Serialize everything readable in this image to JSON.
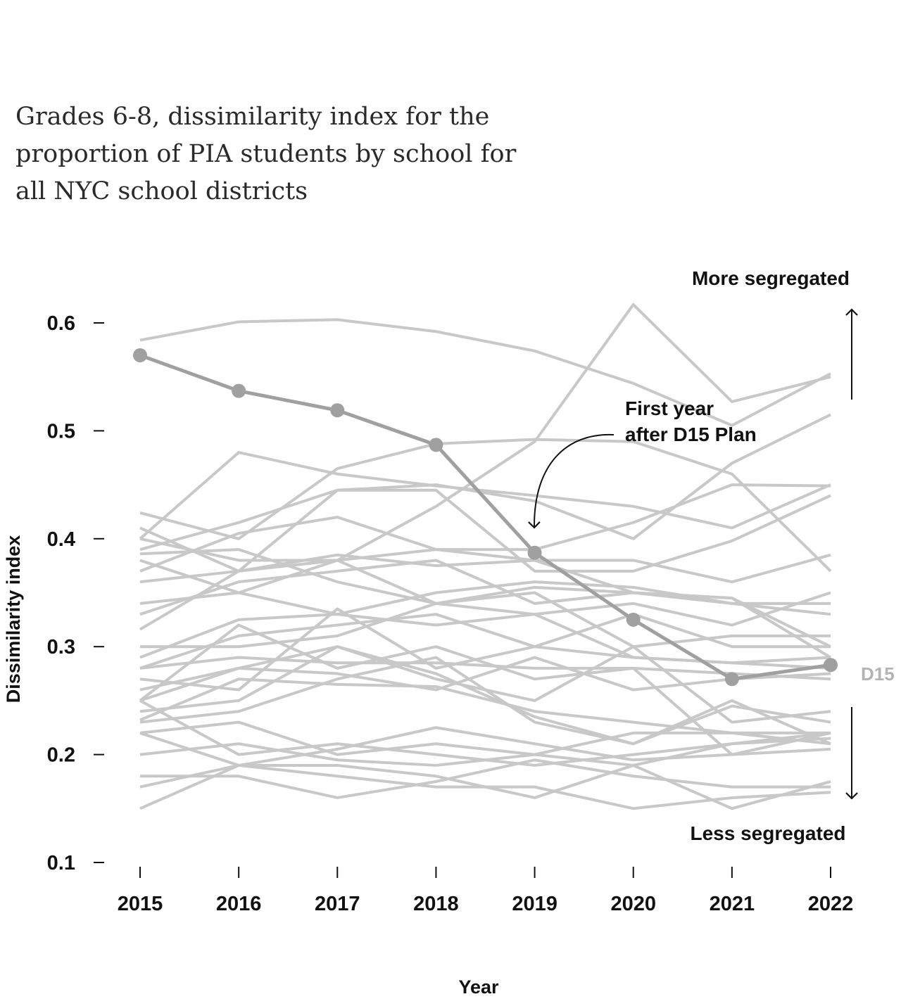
{
  "title_lines": [
    "Grades 6-8, dissimilarity index for the",
    "proportion of PIA students by school for",
    "all NYC school districts"
  ],
  "annotations": {
    "more": "More segregated",
    "less": "Less segregated",
    "note_line1": "First year",
    "note_line2": "after D15 Plan",
    "highlight_label": "D15"
  },
  "colors": {
    "background_lines": "#c8c8c8",
    "highlight": "#a0a0a0",
    "text": "#111111",
    "title": "#2a2a2a"
  },
  "chart_data": {
    "type": "line",
    "title": "Grades 6-8, dissimilarity index for the proportion of PIA students by school for all NYC school districts",
    "xlabel": "Year",
    "ylabel": "Dissimilarity index",
    "x": [
      "2015",
      "2016",
      "2017",
      "2018",
      "2019",
      "2020",
      "2021",
      "2022"
    ],
    "ylim": [
      0.1,
      0.6
    ],
    "yticks": [
      "0.1",
      "0.2",
      "0.3",
      "0.4",
      "0.5",
      "0.6"
    ],
    "grid": false,
    "highlight": {
      "name": "D15",
      "values": [
        0.57,
        0.537,
        0.519,
        0.487,
        0.387,
        0.325,
        0.27,
        0.283
      ],
      "markers": true
    },
    "series": [
      {
        "values": [
          0.584,
          0.601,
          0.603,
          0.592,
          0.574,
          0.544,
          0.505,
          0.553
        ]
      },
      {
        "values": [
          0.38,
          0.35,
          0.38,
          0.43,
          0.49,
          0.617,
          0.527,
          0.55
        ]
      },
      {
        "values": [
          0.4,
          0.48,
          0.46,
          0.449,
          0.44,
          0.43,
          0.41,
          0.45
        ]
      },
      {
        "values": [
          0.424,
          0.4,
          0.465,
          0.488,
          0.492,
          0.49,
          0.46,
          0.37
        ]
      },
      {
        "values": [
          0.39,
          0.415,
          0.445,
          0.45,
          0.435,
          0.4,
          0.47,
          0.515
        ]
      },
      {
        "values": [
          0.37,
          0.405,
          0.42,
          0.39,
          0.39,
          0.415,
          0.45,
          0.449
        ]
      },
      {
        "values": [
          0.36,
          0.37,
          0.445,
          0.445,
          0.37,
          0.37,
          0.398,
          0.44
        ]
      },
      {
        "values": [
          0.4,
          0.38,
          0.38,
          0.39,
          0.38,
          0.35,
          0.34,
          0.33
        ]
      },
      {
        "values": [
          0.41,
          0.37,
          0.385,
          0.375,
          0.38,
          0.38,
          0.36,
          0.385
        ]
      },
      {
        "values": [
          0.386,
          0.39,
          0.36,
          0.34,
          0.355,
          0.35,
          0.345,
          0.3
        ]
      },
      {
        "values": [
          0.34,
          0.35,
          0.33,
          0.35,
          0.36,
          0.355,
          0.34,
          0.34
        ]
      },
      {
        "values": [
          0.33,
          0.36,
          0.37,
          0.38,
          0.34,
          0.35,
          0.345,
          0.29
        ]
      },
      {
        "values": [
          0.316,
          0.37,
          0.38,
          0.34,
          0.35,
          0.3,
          0.31,
          0.31
        ]
      },
      {
        "values": [
          0.29,
          0.325,
          0.33,
          0.32,
          0.33,
          0.34,
          0.32,
          0.35
        ]
      },
      {
        "values": [
          0.28,
          0.31,
          0.32,
          0.33,
          0.3,
          0.33,
          0.3,
          0.3
        ]
      },
      {
        "values": [
          0.3,
          0.3,
          0.31,
          0.34,
          0.33,
          0.29,
          0.285,
          0.29
        ]
      },
      {
        "values": [
          0.27,
          0.26,
          0.335,
          0.28,
          0.3,
          0.29,
          0.285,
          0.28
        ]
      },
      {
        "values": [
          0.28,
          0.29,
          0.285,
          0.285,
          0.28,
          0.28,
          0.275,
          0.27
        ]
      },
      {
        "values": [
          0.25,
          0.28,
          0.275,
          0.26,
          0.29,
          0.26,
          0.27,
          0.275
        ]
      },
      {
        "values": [
          0.25,
          0.32,
          0.28,
          0.3,
          0.27,
          0.28,
          0.2,
          0.22
        ]
      },
      {
        "values": [
          0.24,
          0.25,
          0.3,
          0.27,
          0.25,
          0.3,
          0.23,
          0.24
        ]
      },
      {
        "values": [
          0.23,
          0.24,
          0.27,
          0.29,
          0.23,
          0.21,
          0.245,
          0.23
        ]
      },
      {
        "values": [
          0.22,
          0.23,
          0.2,
          0.21,
          0.2,
          0.22,
          0.22,
          0.21
        ]
      },
      {
        "values": [
          0.25,
          0.2,
          0.21,
          0.2,
          0.19,
          0.2,
          0.21,
          0.215
        ]
      },
      {
        "values": [
          0.22,
          0.19,
          0.205,
          0.225,
          0.21,
          0.195,
          0.2,
          0.205
        ]
      },
      {
        "values": [
          0.2,
          0.21,
          0.195,
          0.19,
          0.2,
          0.19,
          0.21,
          0.22
        ]
      },
      {
        "values": [
          0.18,
          0.18,
          0.16,
          0.175,
          0.195,
          0.18,
          0.17,
          0.17
        ]
      },
      {
        "values": [
          0.17,
          0.19,
          0.18,
          0.17,
          0.17,
          0.15,
          0.16,
          0.165
        ]
      },
      {
        "values": [
          0.15,
          0.19,
          0.19,
          0.18,
          0.16,
          0.19,
          0.15,
          0.175
        ]
      },
      {
        "values": [
          0.232,
          0.27,
          0.265,
          0.263,
          0.24,
          0.23,
          0.22,
          0.22
        ]
      },
      {
        "values": [
          0.26,
          0.28,
          0.3,
          0.275,
          0.235,
          0.21,
          0.25,
          0.21
        ]
      }
    ]
  }
}
